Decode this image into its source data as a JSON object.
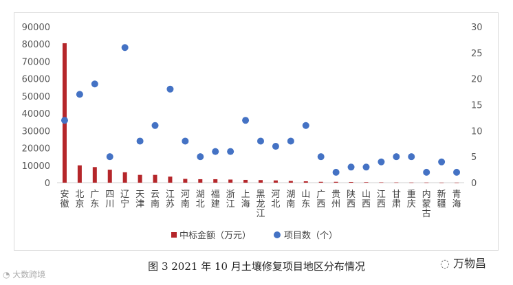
{
  "chart_data": {
    "type": "bar+scatter",
    "categories": [
      "安徽",
      "北京",
      "广东",
      "四川",
      "辽宁",
      "天津",
      "云南",
      "江苏",
      "河南",
      "湖北",
      "福建",
      "浙江",
      "上海",
      "黑龙江",
      "河北",
      "湖南",
      "山东",
      "广西",
      "贵州",
      "陕西",
      "山西",
      "江西",
      "甘肃",
      "重庆",
      "内蒙古",
      "新疆",
      "青海"
    ],
    "series": [
      {
        "name": "中标金额（万元）",
        "axis": "left",
        "kind": "bar",
        "color": "#b5262a",
        "values": [
          80500,
          10000,
          9000,
          7500,
          6000,
          4500,
          4500,
          3500,
          2200,
          2000,
          2000,
          1800,
          1600,
          1500,
          1300,
          1000,
          800,
          500,
          500,
          400,
          300,
          200,
          150,
          100,
          100,
          50,
          50
        ]
      },
      {
        "name": "项目数（个）",
        "axis": "right",
        "kind": "scatter",
        "color": "#4472c4",
        "values": [
          12,
          17,
          19,
          5,
          26,
          8,
          11,
          18,
          8,
          5,
          6,
          6,
          12,
          8,
          7,
          8,
          11,
          5,
          2,
          3,
          3,
          4,
          5,
          5,
          2,
          4,
          2
        ]
      }
    ],
    "left_axis": {
      "min": 0,
      "max": 90000,
      "ticks": [
        0,
        10000,
        20000,
        30000,
        40000,
        50000,
        60000,
        70000,
        80000,
        90000
      ]
    },
    "right_axis": {
      "min": 0,
      "max": 30,
      "ticks": [
        0,
        5,
        10,
        15,
        20,
        25,
        30
      ]
    },
    "legend_position": "bottom",
    "caption": "图 3  2021 年 10 月土壤修复项目地区分布情况"
  },
  "watermarks": {
    "left": "大数跨境",
    "right": "万物昌"
  }
}
